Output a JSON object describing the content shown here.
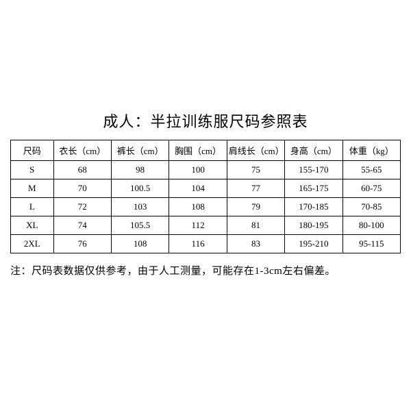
{
  "title": "成人：半拉训练服尺码参照表",
  "table": {
    "type": "table",
    "columns": [
      "尺码",
      "衣长（cm）",
      "裤长（cm）",
      "胸围（cm）",
      "肩线长（cm）",
      "身高（cm）",
      "体重（kg）"
    ],
    "rows": [
      [
        "S",
        "68",
        "98",
        "100",
        "75",
        "155-170",
        "55-65"
      ],
      [
        "M",
        "70",
        "100.5",
        "104",
        "77",
        "165-175",
        "60-75"
      ],
      [
        "L",
        "72",
        "103",
        "108",
        "79",
        "170-185",
        "70-85"
      ],
      [
        "XL",
        "74",
        "105.5",
        "112",
        "81",
        "180-195",
        "80-100"
      ],
      [
        "2XL",
        "76",
        "108",
        "116",
        "83",
        "195-210",
        "95-115"
      ]
    ],
    "border_color": "#000000",
    "background_color": "#ffffff",
    "header_fontsize": 13,
    "cell_fontsize": 13,
    "text_color": "#000000"
  },
  "footnote": "注：尺码表数据仅供参考，由于人工测量，可能存在1-3cm左右偏差。",
  "title_fontsize": 22,
  "footnote_fontsize": 15
}
